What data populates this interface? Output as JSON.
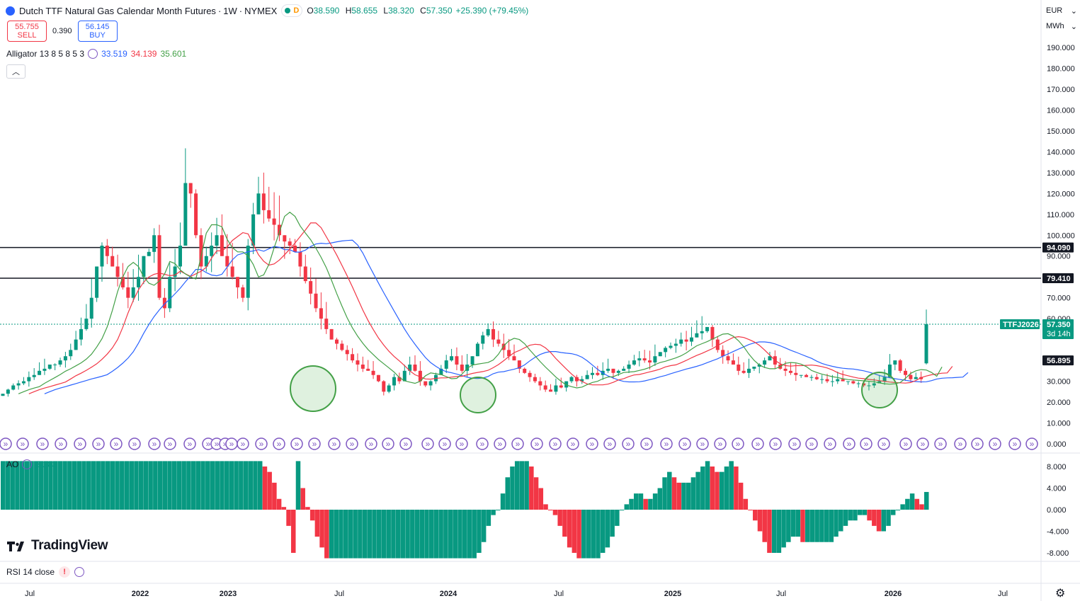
{
  "header": {
    "title": "Dutch TTF Natural Gas Calendar Month Futures",
    "interval": "1W",
    "exchange": "NYMEX",
    "market_badge": "D",
    "o_label": "O",
    "o_value": "38.590",
    "h_label": "H",
    "h_value": "58.655",
    "l_label": "L",
    "l_value": "38.320",
    "c_label": "C",
    "c_value": "57.350",
    "change": "+25.390 (+79.45%)"
  },
  "trade": {
    "sell_price": "55.755",
    "sell_label": "SELL",
    "spread": "0.390",
    "buy_price": "56.145",
    "buy_label": "BUY"
  },
  "indicators": {
    "alligator_label": "Alligator 13 8 5 8 5 3",
    "jaw": "33.519",
    "teeth": "34.139",
    "lips": "35.601",
    "ao_label": "AO",
    "ao_value": "3.283",
    "rsi_label": "RSI 14 close"
  },
  "scale": {
    "currency": "EUR",
    "unit": "MWh"
  },
  "brand": "TradingView",
  "colors": {
    "up": "#089981",
    "down": "#f23645",
    "jaw": "#2962ff",
    "teeth": "#f23645",
    "lips": "#43a047",
    "fractal": "#7e57c2"
  },
  "chart_data": [
    {
      "type": "candlestick",
      "symbol": "TTFJ2026",
      "x_ticks": [
        "Jul",
        "2022",
        "2023",
        "Jul",
        "2024",
        "Jul",
        "2025",
        "Jul",
        "2026",
        "Jul"
      ],
      "y_ticks": [
        "190.000",
        "180.000",
        "170.000",
        "160.000",
        "150.000",
        "140.000",
        "130.000",
        "120.000",
        "110.000",
        "100.000",
        "90.000",
        "70.000",
        "60.000",
        "40.000",
        "30.000",
        "20.000",
        "10.000",
        "0.000"
      ],
      "ylim": [
        0,
        195
      ],
      "horizontal_lines": [
        94.09,
        79.41
      ],
      "price_labels": [
        {
          "text": "94.090",
          "value": 94.09
        },
        {
          "text": "79.410",
          "value": 79.41
        },
        {
          "text": "57.350",
          "value": 57.35,
          "countdown": "3d 14h"
        },
        {
          "text": "56.895",
          "value": 56.895
        }
      ],
      "symbol_label": "TTFJ2026",
      "countdown": "3d 14h",
      "weekly_close_approx": [
        24,
        26,
        28,
        29,
        30,
        32,
        33,
        35,
        36,
        38,
        38,
        40,
        42,
        45,
        50,
        55,
        60,
        70,
        85,
        95,
        90,
        85,
        80,
        75,
        70,
        75,
        80,
        90,
        92,
        100,
        70,
        65,
        80,
        85,
        95,
        125,
        120,
        100,
        85,
        90,
        95,
        100,
        90,
        85,
        80,
        75,
        70,
        95,
        110,
        120,
        112,
        108,
        105,
        100,
        97,
        95,
        92,
        85,
        78,
        72,
        65,
        60,
        55,
        50,
        48,
        45,
        43,
        40,
        38,
        36,
        35,
        33,
        30,
        25,
        28,
        32,
        30,
        35,
        38,
        35,
        30,
        28,
        30,
        33,
        36,
        40,
        42,
        38,
        35,
        38,
        42,
        48,
        52,
        55,
        50,
        48,
        45,
        42,
        40,
        36,
        34,
        32,
        30,
        28,
        26,
        25,
        28,
        27,
        30,
        32,
        30,
        31,
        33,
        34,
        33,
        35,
        36,
        34,
        35,
        36,
        38,
        40,
        41,
        40,
        39,
        42,
        44,
        46,
        47,
        48,
        50,
        49,
        51,
        53,
        54,
        56,
        50,
        45,
        42,
        40,
        38,
        35,
        34,
        36,
        37,
        38,
        40,
        42,
        38,
        36,
        35,
        34,
        33,
        33,
        32,
        32,
        31,
        31,
        30,
        30,
        31,
        30,
        30,
        29,
        29,
        28,
        28,
        29,
        30,
        32,
        38,
        40,
        35,
        33,
        31,
        32,
        31,
        57.35
      ],
      "fractal_markers": "up/down fractal arrows along the bottom of the price pane",
      "circled_lows_approx": [
        {
          "x": "2023-06",
          "y": 25
        },
        {
          "x": "2024-02",
          "y": 25
        },
        {
          "x": "2025-12",
          "y": 28
        }
      ]
    },
    {
      "type": "bar",
      "title": "AO",
      "y_ticks": [
        "8.000",
        "4.000",
        "0.000",
        "-4.000",
        "-8.000"
      ],
      "ylim": [
        -9.5,
        10
      ],
      "last_value": 3.283,
      "values_approx": [
        9,
        9,
        9,
        9,
        9,
        9,
        9,
        9,
        9,
        9,
        9,
        9,
        9,
        9,
        9,
        9,
        9,
        9,
        9,
        9,
        9,
        9,
        9,
        9,
        9,
        9,
        9,
        9,
        9,
        9,
        9,
        9,
        9,
        9,
        9,
        9,
        9,
        9,
        9,
        9,
        9,
        9,
        9,
        9,
        9,
        9,
        9,
        9,
        9,
        9,
        9,
        9,
        9,
        9,
        9,
        8,
        7,
        5,
        2,
        0.5,
        -3,
        -8,
        9,
        4,
        0.5,
        -2,
        -5,
        -7,
        -9,
        -9,
        -9,
        -9,
        -9,
        -9,
        -9,
        -9,
        -9,
        -9,
        -9,
        -9,
        -9,
        -9,
        -9,
        -9,
        -9,
        -9,
        -9,
        -9,
        -9,
        -9,
        -9,
        -9,
        -9,
        -9,
        -9,
        -9,
        -9,
        -9,
        -9,
        -9,
        -8,
        -6,
        -3,
        -1,
        0,
        3,
        6,
        8,
        9,
        9,
        9,
        8,
        6,
        4,
        1,
        0,
        -1,
        -3,
        -5,
        -7,
        -8,
        -9,
        -9,
        -9,
        -9,
        -9,
        -8,
        -7,
        -5,
        -3,
        0,
        1,
        2,
        3,
        3,
        2,
        2,
        3,
        4,
        6,
        7,
        6,
        5,
        5,
        5,
        6,
        7,
        8,
        9,
        8,
        7,
        7,
        8,
        9,
        8,
        5,
        2,
        0,
        -2,
        -4,
        -6,
        -8,
        -8,
        -8,
        -7,
        -6,
        -5,
        -5,
        -6,
        -6,
        -6,
        -6,
        -6,
        -6,
        -6,
        -5,
        -4,
        -3,
        -2,
        -2,
        -1,
        -1,
        -2,
        -3,
        -4,
        -4,
        -3,
        -1,
        0,
        1,
        2,
        3,
        2,
        1,
        3.283
      ]
    },
    {
      "type": "line",
      "title": "RSI 14 close",
      "status": "error",
      "values": []
    }
  ]
}
